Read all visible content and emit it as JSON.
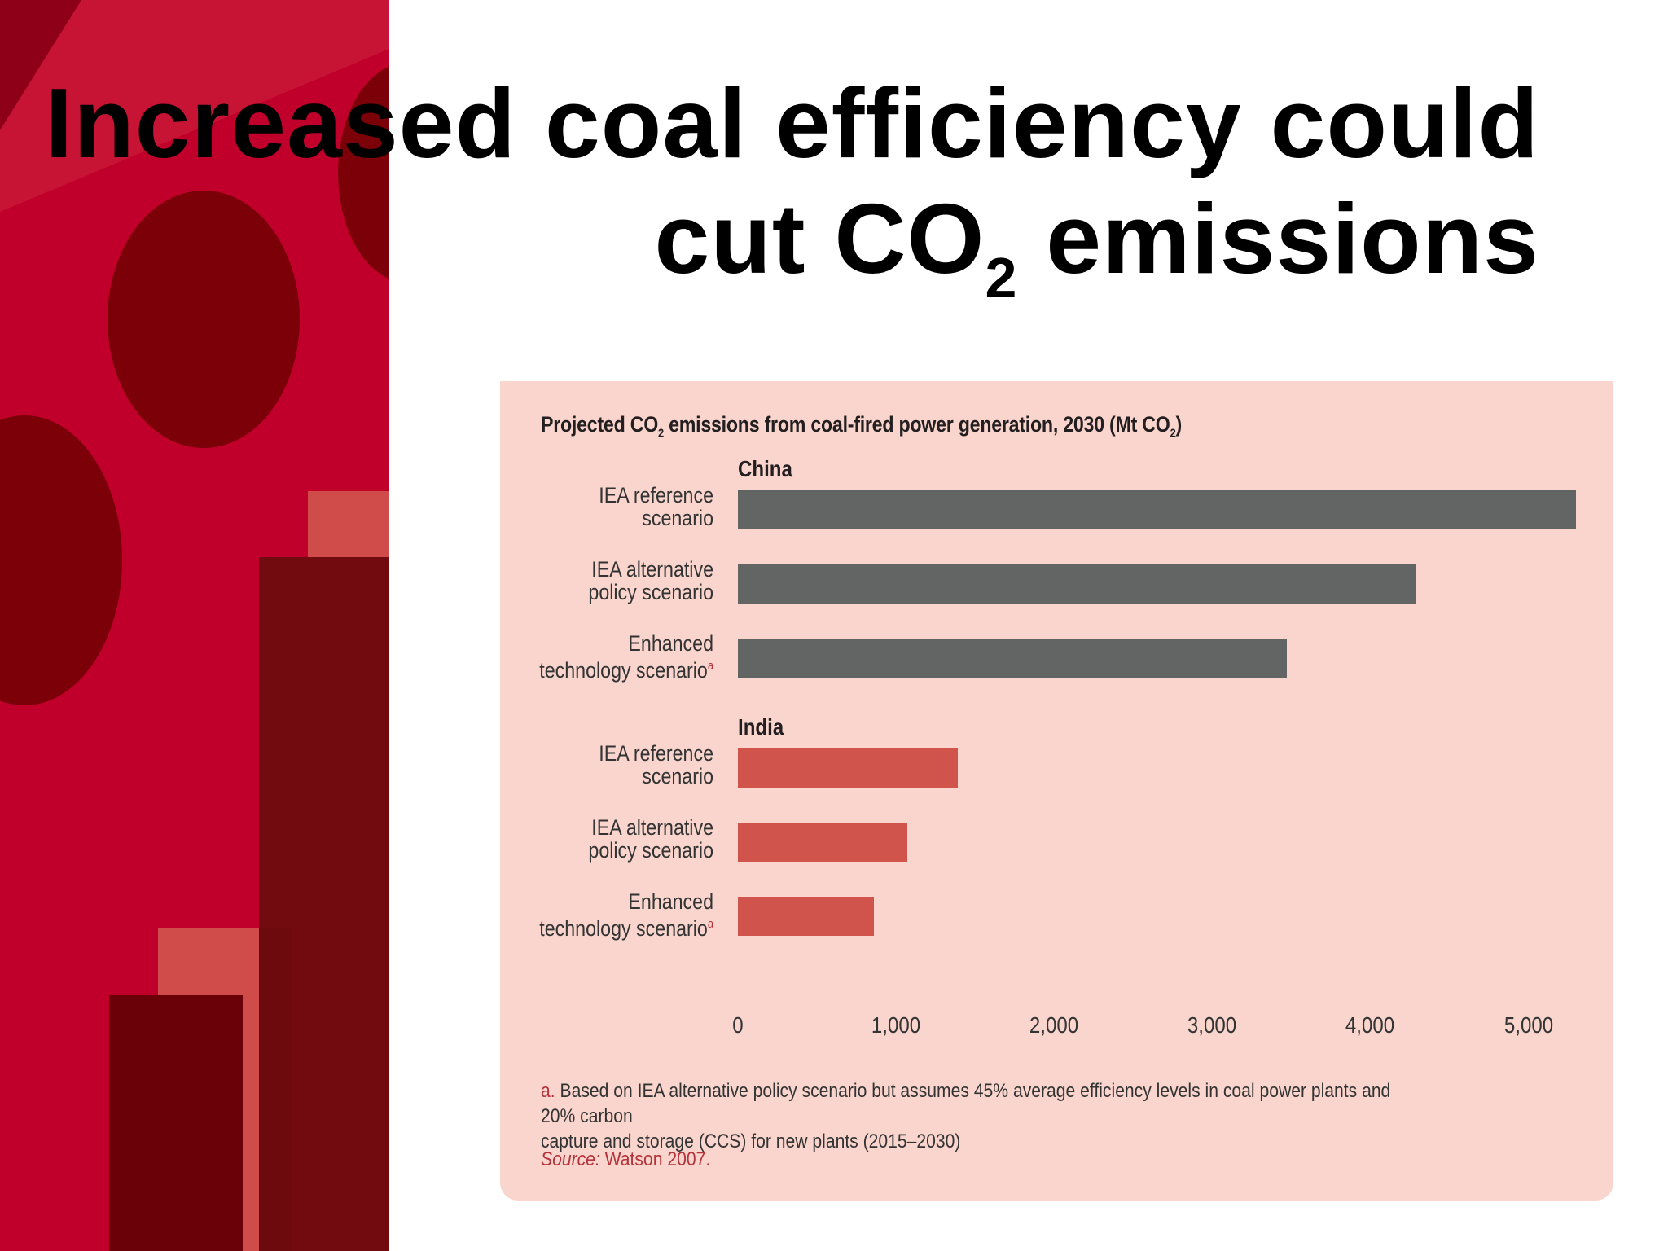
{
  "slide": {
    "title_line1": "Increased coal efficiency could",
    "title_line2_pre": "cut CO",
    "title_line2_sub": "2",
    "title_line2_post": " emissions"
  },
  "colors": {
    "china_bar": "#636464",
    "india_bar": "#d0544b",
    "panel_bg": "#f9d5cd",
    "accent_red": "#c0002b"
  },
  "chart_data": {
    "type": "bar",
    "orientation": "horizontal",
    "title": {
      "part1": "Projected CO",
      "sub1": "2",
      "part2": " emissions from coal-fired power generation, 2030 (Mt CO",
      "sub2": "2",
      "part3": ")"
    },
    "xlim": [
      0,
      5300
    ],
    "ticks": [
      "0",
      "1,000",
      "2,000",
      "3,000",
      "4,000",
      "5,000"
    ],
    "tick_values": [
      0,
      1000,
      2000,
      3000,
      4000,
      5000
    ],
    "grid": false,
    "groups": [
      {
        "name": "China",
        "categories": [
          {
            "line1": "IEA reference",
            "line2": "scenario",
            "sup": "",
            "value": 5300
          },
          {
            "line1": "IEA alternative",
            "line2": "policy scenario",
            "sup": "",
            "value": 4290
          },
          {
            "line1": "Enhanced",
            "line2": "technology scenario",
            "sup": "a",
            "value": 3470
          }
        ]
      },
      {
        "name": "India",
        "categories": [
          {
            "line1": "IEA reference",
            "line2": "scenario",
            "sup": "",
            "value": 1390
          },
          {
            "line1": "IEA alternative",
            "line2": "policy scenario",
            "sup": "",
            "value": 1070
          },
          {
            "line1": "Enhanced",
            "line2": "technology scenario",
            "sup": "a",
            "value": 860
          }
        ]
      }
    ]
  },
  "footnote": {
    "marker": "a.",
    "line1": " Based on IEA alternative policy scenario but assumes 45% average efficiency levels in coal power plants and 20% carbon",
    "line2": "capture and storage (CCS)  for new plants (2015–2030)"
  },
  "source": {
    "label": "Source:",
    "text": " Watson 2007."
  }
}
